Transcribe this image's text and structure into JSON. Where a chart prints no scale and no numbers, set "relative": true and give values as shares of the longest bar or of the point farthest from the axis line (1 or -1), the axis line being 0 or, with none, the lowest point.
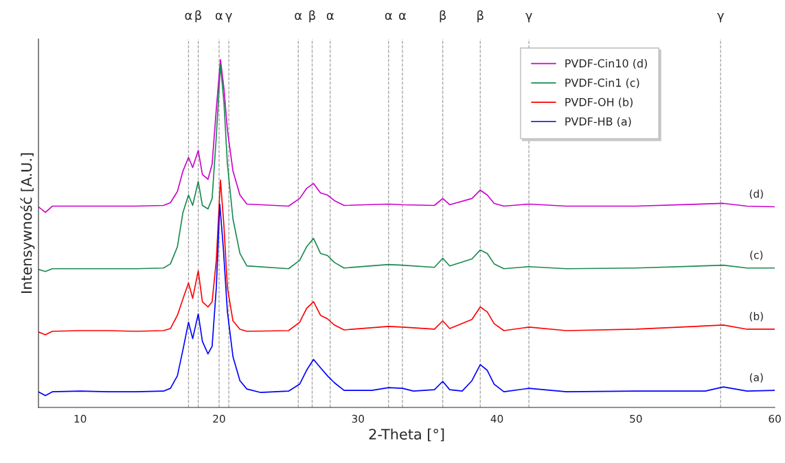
{
  "chart_data": {
    "type": "line",
    "relative": true,
    "xlabel": "2-Theta [°]",
    "ylabel": "Intensywność [A.U.]",
    "xlim": [
      7,
      60
    ],
    "xticks": [
      10,
      20,
      30,
      40,
      50,
      60
    ],
    "tick_labels": "x",
    "legend": "top right",
    "grid": false,
    "marker": "none",
    "line_style": "solid",
    "series": [
      {
        "name": "PVDF-Cin10 (d)",
        "color": "#cc00cc",
        "x": [
          7,
          7.5,
          8,
          10,
          12,
          14,
          16,
          16.5,
          17,
          17.4,
          17.8,
          18.1,
          18.5,
          18.8,
          19.2,
          19.5,
          19.8,
          20.1,
          20.35,
          20.6,
          21.0,
          21.5,
          22,
          25,
          25.8,
          26.3,
          26.8,
          27.3,
          27.8,
          28.3,
          29,
          32.2,
          33.2,
          35.5,
          36.1,
          36.6,
          38.2,
          38.8,
          39.3,
          39.8,
          40.5,
          42.3,
          45,
          50,
          56.3,
          58,
          60
        ],
        "values": [
          0.577,
          0.561,
          0.579,
          0.579,
          0.579,
          0.579,
          0.581,
          0.589,
          0.621,
          0.68,
          0.719,
          0.69,
          0.739,
          0.67,
          0.656,
          0.7,
          0.858,
          1.0,
          0.917,
          0.798,
          0.68,
          0.611,
          0.585,
          0.579,
          0.601,
          0.63,
          0.644,
          0.617,
          0.611,
          0.595,
          0.581,
          0.585,
          0.583,
          0.581,
          0.601,
          0.583,
          0.601,
          0.625,
          0.611,
          0.587,
          0.579,
          0.585,
          0.579,
          0.579,
          0.587,
          0.579,
          0.577
        ]
      },
      {
        "name": "PVDF-Cin1 (c)",
        "color": "#1a8a50",
        "x": [
          7,
          7.5,
          8,
          10,
          12,
          14,
          16,
          16.5,
          17,
          17.4,
          17.8,
          18.1,
          18.5,
          18.8,
          19.2,
          19.5,
          19.8,
          20.1,
          20.35,
          20.6,
          21.0,
          21.5,
          22,
          25,
          25.8,
          26.3,
          26.8,
          27.3,
          27.8,
          28.3,
          29,
          32.2,
          33.2,
          35.5,
          36.1,
          36.6,
          38.2,
          38.8,
          39.3,
          39.8,
          40.5,
          42.3,
          45,
          50,
          56.3,
          58,
          60
        ],
        "values": [
          0.397,
          0.391,
          0.399,
          0.399,
          0.399,
          0.399,
          0.401,
          0.413,
          0.462,
          0.561,
          0.611,
          0.581,
          0.65,
          0.581,
          0.571,
          0.601,
          0.779,
          0.986,
          0.877,
          0.7,
          0.542,
          0.443,
          0.407,
          0.399,
          0.423,
          0.462,
          0.486,
          0.443,
          0.437,
          0.417,
          0.401,
          0.411,
          0.409,
          0.403,
          0.429,
          0.407,
          0.427,
          0.453,
          0.443,
          0.413,
          0.399,
          0.405,
          0.399,
          0.401,
          0.409,
          0.401,
          0.401
        ]
      },
      {
        "name": "PVDF-OH (b)",
        "color": "#ff0000",
        "x": [
          7,
          7.5,
          8,
          10,
          12,
          14,
          16,
          16.5,
          17,
          17.5,
          17.8,
          18.1,
          18.5,
          18.8,
          19.2,
          19.5,
          19.8,
          20.1,
          20.35,
          20.6,
          21.0,
          21.5,
          22,
          25,
          25.8,
          26.3,
          26.8,
          27.3,
          27.8,
          28.3,
          29,
          32.2,
          33.2,
          35.5,
          36.1,
          36.6,
          38.2,
          38.8,
          39.3,
          39.8,
          40.5,
          42.3,
          45,
          50,
          56.3,
          58,
          60
        ],
        "values": [
          0.217,
          0.209,
          0.219,
          0.221,
          0.221,
          0.219,
          0.221,
          0.227,
          0.265,
          0.324,
          0.358,
          0.314,
          0.393,
          0.304,
          0.289,
          0.304,
          0.423,
          0.654,
          0.522,
          0.344,
          0.249,
          0.225,
          0.219,
          0.221,
          0.245,
          0.285,
          0.304,
          0.265,
          0.255,
          0.237,
          0.223,
          0.233,
          0.231,
          0.225,
          0.249,
          0.227,
          0.253,
          0.289,
          0.275,
          0.241,
          0.221,
          0.231,
          0.221,
          0.225,
          0.237,
          0.225,
          0.225
        ]
      },
      {
        "name": "PVDF-HB (a)",
        "color": "#0000ff",
        "x": [
          7,
          7.5,
          8,
          10,
          12,
          14,
          16,
          16.5,
          17,
          17.4,
          17.8,
          18.1,
          18.5,
          18.8,
          19.2,
          19.5,
          19.8,
          20.05,
          20.3,
          20.6,
          21.0,
          21.5,
          22,
          23,
          25,
          25.8,
          26.3,
          26.8,
          27.2,
          27.8,
          28.3,
          29,
          31,
          32.2,
          33.2,
          34,
          35.5,
          36.1,
          36.6,
          37.5,
          38.2,
          38.8,
          39.3,
          39.8,
          40.5,
          42.3,
          45,
          50,
          55,
          56.3,
          58,
          60
        ],
        "values": [
          0.045,
          0.034,
          0.045,
          0.047,
          0.045,
          0.045,
          0.047,
          0.055,
          0.091,
          0.166,
          0.245,
          0.198,
          0.269,
          0.19,
          0.154,
          0.176,
          0.344,
          0.585,
          0.462,
          0.275,
          0.146,
          0.077,
          0.053,
          0.043,
          0.047,
          0.067,
          0.107,
          0.138,
          0.119,
          0.091,
          0.071,
          0.049,
          0.049,
          0.057,
          0.055,
          0.047,
          0.051,
          0.075,
          0.051,
          0.047,
          0.077,
          0.123,
          0.107,
          0.067,
          0.045,
          0.055,
          0.045,
          0.047,
          0.047,
          0.059,
          0.047,
          0.049
        ]
      }
    ],
    "ref_lines": [
      {
        "axis": "x",
        "value": 17.8,
        "label": "α",
        "color": "#a0a0a0",
        "line_style": "dashed"
      },
      {
        "axis": "x",
        "value": 18.5,
        "label": "β",
        "color": "#a0a0a0",
        "line_style": "dashed"
      },
      {
        "axis": "x",
        "value": 20.0,
        "label": "α",
        "color": "#a0a0a0",
        "line_style": "dashed"
      },
      {
        "axis": "x",
        "value": 20.7,
        "label": "γ",
        "color": "#a0a0a0",
        "line_style": "dashed"
      },
      {
        "axis": "x",
        "value": 25.7,
        "label": "α",
        "color": "#a0a0a0",
        "line_style": "dashed"
      },
      {
        "axis": "x",
        "value": 26.7,
        "label": "β",
        "color": "#a0a0a0",
        "line_style": "dashed"
      },
      {
        "axis": "x",
        "value": 28.0,
        "label": "α",
        "color": "#a0a0a0",
        "line_style": "dashed"
      },
      {
        "axis": "x",
        "value": 32.2,
        "label": "α",
        "color": "#a0a0a0",
        "line_style": "dashed"
      },
      {
        "axis": "x",
        "value": 33.2,
        "label": "α",
        "color": "#a0a0a0",
        "line_style": "dashed"
      },
      {
        "axis": "x",
        "value": 36.1,
        "label": "β",
        "color": "#a0a0a0",
        "line_style": "dashed"
      },
      {
        "axis": "x",
        "value": 38.8,
        "label": "β",
        "color": "#a0a0a0",
        "line_style": "dashed"
      },
      {
        "axis": "x",
        "value": 42.3,
        "label": "γ",
        "color": "#a0a0a0",
        "line_style": "dashed"
      },
      {
        "axis": "x",
        "value": 56.1,
        "label": "γ",
        "color": "#a0a0a0",
        "line_style": "dashed"
      }
    ],
    "annotations": [
      "(d)",
      "(c)",
      "(b)",
      "(a)"
    ]
  }
}
